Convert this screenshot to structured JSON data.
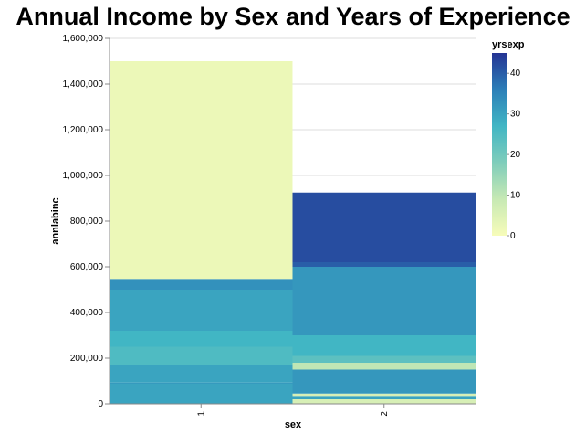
{
  "chart_data": {
    "type": "bar",
    "stacked": true,
    "title": "Annual Income by Sex and Years of Experience",
    "xlabel": "sex",
    "ylabel": "annlabinc",
    "categories": [
      "1",
      "2"
    ],
    "ylim": [
      0,
      1600000
    ],
    "yticks": [
      0,
      200000,
      400000,
      600000,
      800000,
      1000000,
      1200000,
      1400000,
      1600000
    ],
    "ytick_labels": [
      "0",
      "200,000",
      "400,000",
      "600,000",
      "800,000",
      "1,000,000",
      "1,200,000",
      "1,400,000",
      "1,600,000"
    ],
    "grid": true,
    "legend": {
      "title": "yrsexp",
      "position": "right",
      "range": [
        0,
        45
      ],
      "ticks": [
        0,
        10,
        20,
        30,
        40
      ],
      "tick_labels": [
        "0",
        "10",
        "20",
        "30",
        "40"
      ],
      "color_stops": [
        "#f7fcb9",
        "#c7e9b4",
        "#7fcdbb",
        "#41b6c4",
        "#2c7fb8",
        "#253494"
      ]
    },
    "stacks": [
      {
        "category": "1",
        "segments": [
          {
            "yrsexp": 30,
            "value": 90000
          },
          {
            "yrsexp": 33,
            "value": 3000
          },
          {
            "yrsexp": 30,
            "value": 77000
          },
          {
            "yrsexp": 25,
            "value": 80000
          },
          {
            "yrsexp": 27,
            "value": 70000
          },
          {
            "yrsexp": 30,
            "value": 180000
          },
          {
            "yrsexp": 33,
            "value": 47000
          },
          {
            "yrsexp": 2,
            "value": 953000
          }
        ]
      },
      {
        "category": "2",
        "segments": [
          {
            "yrsexp": 6,
            "value": 20000
          },
          {
            "yrsexp": 30,
            "value": 15000
          },
          {
            "yrsexp": 6,
            "value": 10000
          },
          {
            "yrsexp": 32,
            "value": 105000
          },
          {
            "yrsexp": 10,
            "value": 30000
          },
          {
            "yrsexp": 23,
            "value": 30000
          },
          {
            "yrsexp": 27,
            "value": 90000
          },
          {
            "yrsexp": 32,
            "value": 300000
          },
          {
            "yrsexp": 40,
            "value": 20000
          },
          {
            "yrsexp": 42,
            "value": 305000
          }
        ]
      }
    ]
  }
}
